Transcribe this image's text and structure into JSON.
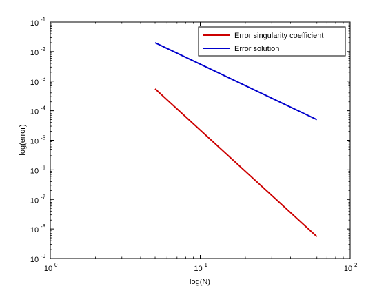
{
  "chart_data": {
    "type": "line",
    "xscale": "log",
    "yscale": "log",
    "xlim": [
      1,
      100
    ],
    "ylim": [
      1e-09,
      0.1
    ],
    "xlabel": "log(N)",
    "ylabel": "log(error)",
    "grid": false,
    "legend_position": "top-right",
    "x_ticks": [
      {
        "value": 1,
        "base": "10",
        "exp": "0"
      },
      {
        "value": 10,
        "base": "10",
        "exp": "1"
      },
      {
        "value": 100,
        "base": "10",
        "exp": "2"
      }
    ],
    "y_ticks": [
      {
        "value": 1e-09,
        "base": "10",
        "exp": "-9"
      },
      {
        "value": 1e-08,
        "base": "10",
        "exp": "-8"
      },
      {
        "value": 1e-07,
        "base": "10",
        "exp": "-7"
      },
      {
        "value": 1e-06,
        "base": "10",
        "exp": "-6"
      },
      {
        "value": 1e-05,
        "base": "10",
        "exp": "-5"
      },
      {
        "value": 0.0001,
        "base": "10",
        "exp": "-4"
      },
      {
        "value": 0.001,
        "base": "10",
        "exp": "-3"
      },
      {
        "value": 0.01,
        "base": "10",
        "exp": "-2"
      },
      {
        "value": 0.1,
        "base": "10",
        "exp": "-1"
      }
    ],
    "series": [
      {
        "name": "Error singularity coefficient",
        "color": "#cc0000",
        "x": [
          5,
          60
        ],
        "y": [
          0.00055,
          5.5e-09
        ]
      },
      {
        "name": "Error solution",
        "color": "#0000cc",
        "x": [
          5,
          60
        ],
        "y": [
          0.02,
          5e-05
        ]
      }
    ]
  }
}
